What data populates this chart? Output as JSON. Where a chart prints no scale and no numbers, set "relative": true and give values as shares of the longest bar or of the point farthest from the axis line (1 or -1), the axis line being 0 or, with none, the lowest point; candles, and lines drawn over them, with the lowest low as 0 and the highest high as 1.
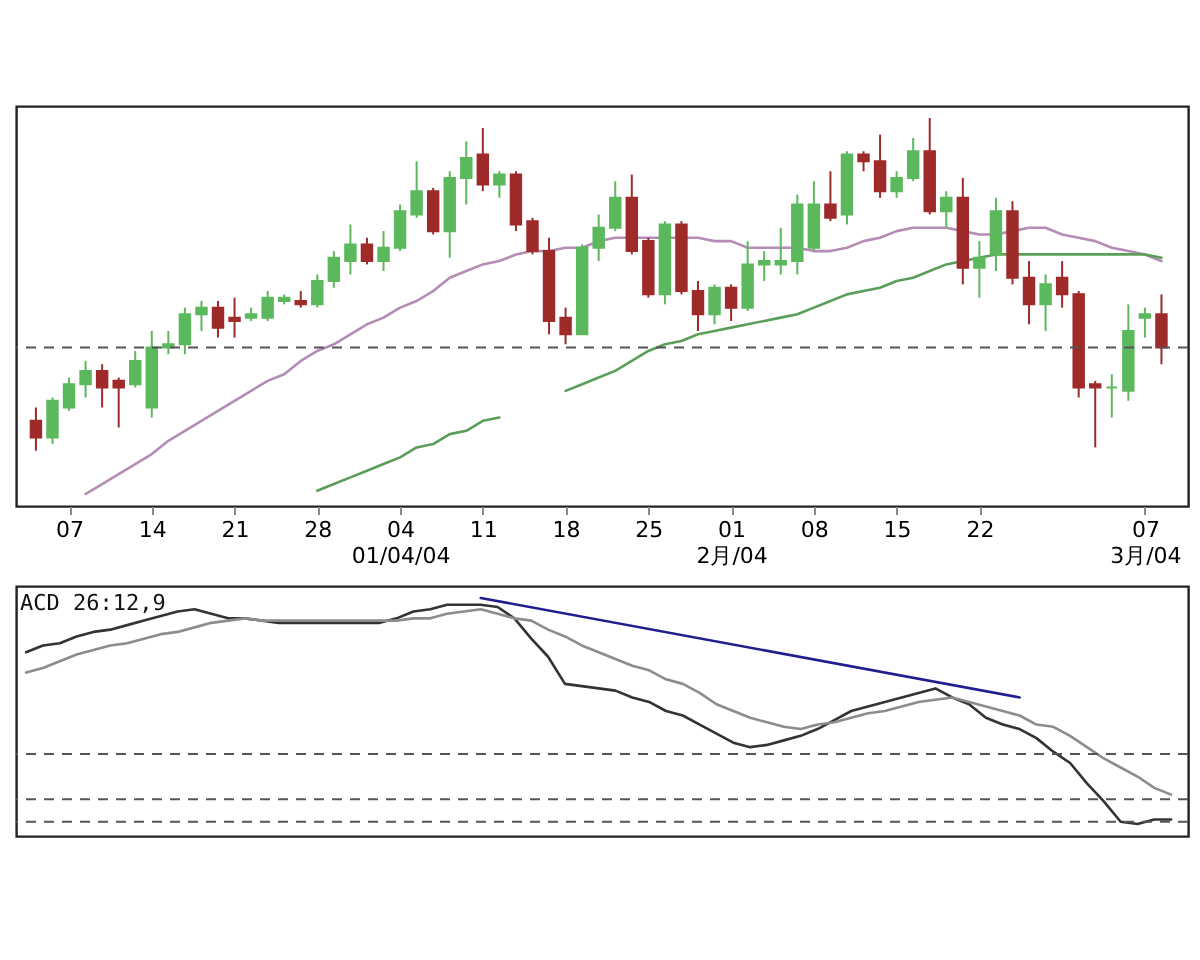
{
  "chart_data": [
    {
      "type": "candlestick",
      "relative": true,
      "tick_labels": "x",
      "categories": [
        null,
        null,
        "07",
        null,
        null,
        null,
        null,
        "14",
        null,
        null,
        null,
        null,
        "21",
        null,
        null,
        null,
        null,
        "28",
        null,
        null,
        null,
        null,
        "04\n01/04/04",
        null,
        null,
        null,
        null,
        "11",
        null,
        null,
        null,
        null,
        "18",
        null,
        null,
        null,
        null,
        "25",
        null,
        null,
        null,
        null,
        "01\n2月/04",
        null,
        null,
        null,
        null,
        "08",
        null,
        null,
        null,
        null,
        "15",
        null,
        null,
        null,
        null,
        "22",
        null,
        null,
        null,
        null,
        null,
        null,
        null,
        null,
        null,
        "07\n3月/04",
        null
      ],
      "ohlc": [
        [
          0.09,
          0.13,
          0,
          0.04
        ],
        [
          0.04,
          0.16,
          0.02,
          0.15
        ],
        [
          0.13,
          0.22,
          0.12,
          0.2
        ],
        [
          0.2,
          0.27,
          0.16,
          0.24
        ],
        [
          0.24,
          0.26,
          0.13,
          0.19
        ],
        [
          0.21,
          0.22,
          0.07,
          0.19
        ],
        [
          0.2,
          0.3,
          0.19,
          0.27
        ],
        [
          0.13,
          0.36,
          0.1,
          0.31
        ],
        [
          0.31,
          0.36,
          0.29,
          0.32
        ],
        [
          0.32,
          0.43,
          0.29,
          0.41
        ],
        [
          0.41,
          0.45,
          0.36,
          0.43
        ],
        [
          0.43,
          0.45,
          0.34,
          0.37
        ],
        [
          0.4,
          0.46,
          0.34,
          0.39
        ],
        [
          0.4,
          0.43,
          0.39,
          0.41
        ],
        [
          0.4,
          0.48,
          0.39,
          0.46
        ],
        [
          0.45,
          0.47,
          0.44,
          0.46
        ],
        [
          0.45,
          0.48,
          0.43,
          0.44
        ],
        [
          0.44,
          0.53,
          0.43,
          0.51
        ],
        [
          0.51,
          0.6,
          0.49,
          0.58
        ],
        [
          0.57,
          0.68,
          0.53,
          0.62
        ],
        [
          0.62,
          0.64,
          0.56,
          0.57
        ],
        [
          0.57,
          0.66,
          0.54,
          0.61
        ],
        [
          0.61,
          0.74,
          0.6,
          0.72
        ],
        [
          0.71,
          0.87,
          0.7,
          0.78
        ],
        [
          0.78,
          0.79,
          0.65,
          0.66
        ],
        [
          0.66,
          0.84,
          0.58,
          0.82
        ],
        [
          0.82,
          0.93,
          0.74,
          0.88
        ],
        [
          0.89,
          0.97,
          0.78,
          0.8
        ],
        [
          0.8,
          0.84,
          0.76,
          0.83
        ],
        [
          0.83,
          0.84,
          0.66,
          0.68
        ],
        [
          0.69,
          0.7,
          0.59,
          0.6
        ],
        [
          0.6,
          0.64,
          0.35,
          0.39
        ],
        [
          0.4,
          0.43,
          0.32,
          0.35
        ],
        [
          0.35,
          0.62,
          0.35,
          0.61
        ],
        [
          0.61,
          0.71,
          0.57,
          0.67
        ],
        [
          0.67,
          0.81,
          0.66,
          0.76
        ],
        [
          0.76,
          0.83,
          0.59,
          0.6
        ],
        [
          0.63,
          0.64,
          0.46,
          0.47
        ],
        [
          0.47,
          0.69,
          0.44,
          0.68
        ],
        [
          0.68,
          0.69,
          0.47,
          0.48
        ],
        [
          0.48,
          0.51,
          0.36,
          0.41
        ],
        [
          0.41,
          0.5,
          0.38,
          0.49
        ],
        [
          0.49,
          0.5,
          0.39,
          0.43
        ],
        [
          0.43,
          0.63,
          0.42,
          0.56
        ],
        [
          0.56,
          0.6,
          0.51,
          0.57
        ],
        [
          0.56,
          0.67,
          0.53,
          0.57
        ],
        [
          0.57,
          0.77,
          0.53,
          0.74
        ],
        [
          0.61,
          0.81,
          0.6,
          0.74
        ],
        [
          0.74,
          0.84,
          0.69,
          0.7
        ],
        [
          0.71,
          0.9,
          0.68,
          0.89
        ],
        [
          0.89,
          0.9,
          0.84,
          0.87
        ],
        [
          0.87,
          0.95,
          0.76,
          0.78
        ],
        [
          0.78,
          0.84,
          0.76,
          0.82
        ],
        [
          0.82,
          0.94,
          0.81,
          0.9
        ],
        [
          0.9,
          1,
          0.71,
          0.72
        ],
        [
          0.72,
          0.78,
          0.67,
          0.76
        ],
        [
          0.76,
          0.82,
          0.5,
          0.55
        ],
        [
          0.55,
          0.63,
          0.46,
          0.58
        ],
        [
          0.59,
          0.76,
          0.54,
          0.72
        ],
        [
          0.72,
          0.75,
          0.5,
          0.52
        ],
        [
          0.52,
          0.57,
          0.38,
          0.44
        ],
        [
          0.44,
          0.53,
          0.36,
          0.5
        ],
        [
          0.52,
          0.57,
          0.43,
          0.47
        ],
        [
          0.47,
          0.48,
          0.16,
          0.19
        ],
        [
          0.2,
          0.21,
          0.01,
          0.19
        ],
        [
          0.19,
          0.23,
          0.1,
          0.19
        ],
        [
          0.18,
          0.44,
          0.15,
          0.36
        ],
        [
          0.4,
          0.43,
          0.34,
          0.41
        ],
        [
          0.41,
          0.47,
          0.26,
          0.31
        ]
      ],
      "colors": [
        "#9e2a2a",
        "#5cb85c",
        "#5cb85c",
        "#5cb85c",
        "#9e2a2a",
        "#9e2a2a",
        "#5cb85c",
        "#5cb85c",
        "#5cb85c",
        "#5cb85c",
        "#5cb85c",
        "#9e2a2a",
        "#9e2a2a",
        "#5cb85c",
        "#5cb85c",
        "#5cb85c",
        "#9e2a2a",
        "#5cb85c",
        "#5cb85c",
        "#5cb85c",
        "#9e2a2a",
        "#5cb85c",
        "#5cb85c",
        "#5cb85c",
        "#9e2a2a",
        "#5cb85c",
        "#5cb85c",
        "#9e2a2a",
        "#5cb85c",
        "#9e2a2a",
        "#9e2a2a",
        "#9e2a2a",
        "#9e2a2a",
        "#5cb85c",
        "#5cb85c",
        "#5cb85c",
        "#9e2a2a",
        "#9e2a2a",
        "#5cb85c",
        "#9e2a2a",
        "#9e2a2a",
        "#5cb85c",
        "#9e2a2a",
        "#5cb85c",
        "#5cb85c",
        "#5cb85c",
        "#5cb85c",
        "#5cb85c",
        "#9e2a2a",
        "#5cb85c",
        "#9e2a2a",
        "#9e2a2a",
        "#5cb85c",
        "#5cb85c",
        "#9e2a2a",
        "#5cb85c",
        "#9e2a2a",
        "#5cb85c",
        "#5cb85c",
        "#9e2a2a",
        "#9e2a2a",
        "#5cb85c",
        "#9e2a2a",
        "#9e2a2a",
        "#9e2a2a",
        "#5cb85c",
        "#5cb85c",
        "#5cb85c",
        "#9e2a2a"
      ],
      "series": [
        {
          "type": "line",
          "color": "#b48cb4",
          "values": [
            null,
            null,
            null,
            -0.13,
            -0.1,
            -0.07,
            -0.04,
            -0.01,
            0.03,
            0.06,
            0.09,
            0.12,
            0.15,
            0.18,
            0.21,
            0.23,
            0.27,
            0.3,
            0.32,
            0.35,
            0.38,
            0.4,
            0.43,
            0.45,
            0.48,
            0.52,
            0.54,
            0.56,
            0.57,
            0.59,
            0.6,
            0.6,
            0.61,
            0.61,
            0.63,
            0.64,
            0.64,
            0.64,
            0.64,
            0.64,
            0.64,
            0.63,
            0.63,
            0.61,
            0.61,
            0.61,
            0.61,
            0.6,
            0.6,
            0.61,
            0.63,
            0.64,
            0.66,
            0.67,
            0.67,
            0.67,
            0.66,
            0.65,
            0.65,
            0.66,
            0.67,
            0.67,
            0.65,
            0.64,
            0.63,
            0.61,
            0.6,
            0.59,
            0.57
          ]
        },
        {
          "type": "line",
          "color": "#5a9e5a",
          "values": [
            null,
            null,
            null,
            null,
            null,
            null,
            null,
            null,
            null,
            null,
            null,
            null,
            null,
            null,
            null,
            null,
            null,
            -0.12,
            -0.1,
            -0.08,
            -0.06,
            -0.04,
            -0.02,
            0.01,
            0.02,
            0.05,
            0.06,
            0.09,
            0.1,
            null,
            null,
            null,
            null,
            null,
            null,
            null,
            null,
            null,
            null,
            null,
            null,
            null,
            null,
            null,
            null,
            null,
            null,
            null,
            null,
            null,
            null,
            null,
            null,
            null,
            null,
            null,
            null,
            null,
            null,
            null,
            null,
            null,
            null,
            null,
            null,
            null,
            null,
            null,
            null
          ]
        },
        {
          "type": "line",
          "color": "#5a9e5a",
          "values": [
            null,
            null,
            null,
            null,
            null,
            null,
            null,
            null,
            null,
            null,
            null,
            null,
            null,
            null,
            null,
            null,
            null,
            null,
            null,
            null,
            null,
            null,
            null,
            null,
            null,
            null,
            null,
            null,
            null,
            null,
            null,
            null,
            0.18,
            0.2,
            0.22,
            0.24,
            0.27,
            0.3,
            0.32,
            0.33,
            0.35,
            0.36,
            0.37,
            0.38,
            0.39,
            0.4,
            0.41,
            0.43,
            0.45,
            0.47,
            0.48,
            0.49,
            0.51,
            0.52,
            0.54,
            0.56,
            0.57,
            0.58,
            0.59,
            0.59,
            0.59,
            0.59,
            0.59,
            0.59,
            0.59,
            0.59,
            0.59,
            0.59,
            0.58
          ]
        }
      ],
      "ref_lines": [
        {
          "axis": "y",
          "value": 0.31,
          "color": "#555555",
          "line_style": "dashed"
        }
      ]
    },
    {
      "type": "line",
      "relative": true,
      "categories": [
        null,
        null,
        null,
        null,
        null,
        null,
        null,
        null,
        null,
        null,
        null,
        null,
        null,
        null,
        null,
        null,
        null,
        null,
        null,
        null,
        null,
        null,
        null,
        null,
        null,
        null,
        null,
        null,
        null,
        null,
        null,
        null,
        null,
        null,
        null,
        null,
        null,
        null,
        null,
        null,
        null,
        null,
        null,
        null,
        null,
        null,
        null,
        null,
        null,
        null,
        null,
        null,
        null,
        null,
        null,
        null,
        null,
        null,
        null,
        null,
        null,
        null,
        null,
        null,
        null,
        null,
        null,
        null,
        null
      ],
      "annotations": [
        "ACD 26:12,9"
      ],
      "series": [
        {
          "color": "#333333",
          "values": [
            0.76,
            0.79,
            0.8,
            0.83,
            0.85,
            0.86,
            0.88,
            0.9,
            0.92,
            0.94,
            0.95,
            0.93,
            0.91,
            0.91,
            0.9,
            0.89,
            0.89,
            0.89,
            0.89,
            0.89,
            0.89,
            0.89,
            0.91,
            0.94,
            0.95,
            0.97,
            0.97,
            0.97,
            0.96,
            0.91,
            0.82,
            0.74,
            0.62,
            0.61,
            0.6,
            0.59,
            0.56,
            0.54,
            0.5,
            0.48,
            0.44,
            0.4,
            0.36,
            0.34,
            0.35,
            0.37,
            0.39,
            0.42,
            0.46,
            0.5,
            0.52,
            0.54,
            0.56,
            0.58,
            0.6,
            0.56,
            0.53,
            0.47,
            0.44,
            0.42,
            0.38,
            0.32,
            0.27,
            0.18,
            0.1,
            0.01,
            0,
            0.02,
            0.02
          ]
        },
        {
          "color": "#8c8c8c",
          "values": [
            0.67,
            0.69,
            0.72,
            0.75,
            0.77,
            0.79,
            0.8,
            0.82,
            0.84,
            0.85,
            0.87,
            0.89,
            0.9,
            0.91,
            0.9,
            0.9,
            0.9,
            0.9,
            0.9,
            0.9,
            0.9,
            0.9,
            0.9,
            0.91,
            0.91,
            0.93,
            0.94,
            0.95,
            0.93,
            0.91,
            0.9,
            0.86,
            0.83,
            0.79,
            0.76,
            0.73,
            0.7,
            0.68,
            0.64,
            0.62,
            0.58,
            0.53,
            0.5,
            0.47,
            0.45,
            0.43,
            0.42,
            0.44,
            0.45,
            0.47,
            0.49,
            0.5,
            0.52,
            0.54,
            0.55,
            0.56,
            0.54,
            0.52,
            0.5,
            0.48,
            0.44,
            0.43,
            0.39,
            0.34,
            0.29,
            0.25,
            0.21,
            0.16,
            0.13
          ]
        },
        {
          "color": "#1f1f8f",
          "values": [
            null,
            null,
            null,
            null,
            null,
            null,
            null,
            null,
            null,
            null,
            null,
            null,
            null,
            null,
            null,
            null,
            null,
            null,
            null,
            null,
            null,
            null,
            null,
            null,
            null,
            null,
            null,
            1,
            null,
            null,
            null,
            null,
            null,
            null,
            null,
            null,
            null,
            null,
            null,
            null,
            null,
            null,
            null,
            null,
            null,
            null,
            null,
            null,
            null,
            null,
            null,
            null,
            null,
            null,
            null,
            null,
            null,
            null,
            null,
            0.56,
            null,
            null,
            null,
            null,
            null,
            null,
            null,
            null,
            null
          ]
        }
      ],
      "ref_lines": [
        {
          "axis": "y",
          "value": 0.31,
          "color": "#555555",
          "line_style": "dashed"
        },
        {
          "axis": "y",
          "value": 0.11,
          "color": "#555555",
          "line_style": "dashed"
        },
        {
          "axis": "y",
          "value": 0.01,
          "color": "#555555",
          "line_style": "dashed"
        }
      ]
    }
  ]
}
